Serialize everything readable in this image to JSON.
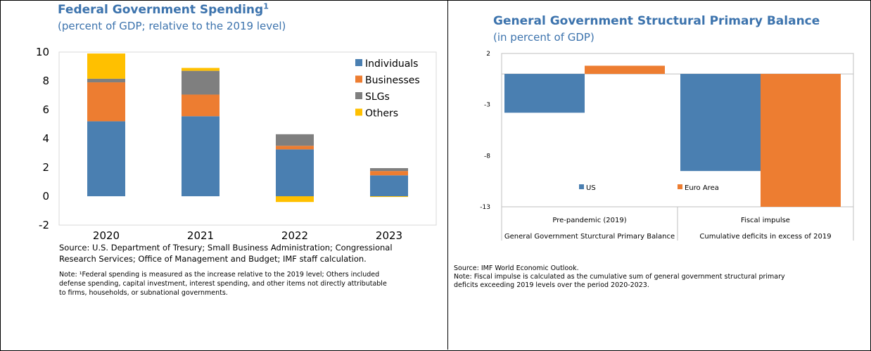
{
  "left": {
    "title": "Federal Government Spending",
    "title_footnote": "1",
    "subtitle": "(percent of GDP; relative to the 2019 level)",
    "source_lines": [
      "Source: U.S. Department of Tresury; Small Business Administration; Congressional",
      "Research Services; Office of Management and Budget; IMF staff calculation."
    ],
    "note_lines": [
      "Note: ¹Federal spending is measured as the increase relative to the 2019 level; Others included",
      "defense spending, capital investment, interest spending, and other items not directly attributable",
      "to firms, households, or subnational governments."
    ]
  },
  "right": {
    "title": "General Government Structural Primary Balance",
    "subtitle": "(in percent of GDP)",
    "source": "Source: IMF World Economic Outlook.",
    "note_lines": [
      "Note: Fiscal impulse is calculated as the cumulative sum of general government structural primary",
      "deficits exceeding 2019 levels over the period 2020-2023."
    ]
  },
  "chart_data": [
    {
      "type": "bar",
      "stacked": true,
      "title": "Federal Government Spending",
      "categories": [
        "2020",
        "2021",
        "2022",
        "2023"
      ],
      "series": [
        {
          "name": "Individuals",
          "color": "#4a7fb1",
          "values": [
            5.2,
            5.55,
            3.25,
            1.45
          ]
        },
        {
          "name": "Businesses",
          "color": "#ed7d31",
          "values": [
            2.7,
            1.5,
            0.25,
            0.3
          ]
        },
        {
          "name": "SLGs",
          "color": "#7f7f7f",
          "values": [
            0.25,
            1.65,
            0.8,
            0.2
          ]
        },
        {
          "name": "Others",
          "color": "#ffc000",
          "values": [
            1.75,
            0.2,
            -0.4,
            -0.05
          ]
        }
      ],
      "ylim": [
        -2,
        10
      ],
      "yticks": [
        "-2",
        "0",
        "2",
        "4",
        "6",
        "8",
        "10"
      ],
      "xlabel": "",
      "ylabel": "",
      "legend_position": "top-right",
      "grid": false
    },
    {
      "type": "bar",
      "title": "General Government Structural Primary Balance",
      "categories": [
        "Pre-pandemic (2019)",
        "Fiscal impulse"
      ],
      "group_labels": [
        "General Government Sturctural Primary Balance",
        "Cumulative deficits in excess of 2019"
      ],
      "series": [
        {
          "name": "US",
          "color": "#4a7fb1",
          "values": [
            -3.8,
            -9.5
          ]
        },
        {
          "name": "Euro Area",
          "color": "#ed7d31",
          "values": [
            0.8,
            -13
          ]
        }
      ],
      "ylim": [
        -13,
        2
      ],
      "yticks": [
        "2",
        "-3",
        "-8",
        "-13"
      ],
      "xlabel": "",
      "ylabel": "",
      "legend_position": "bottom",
      "grid": false
    }
  ]
}
